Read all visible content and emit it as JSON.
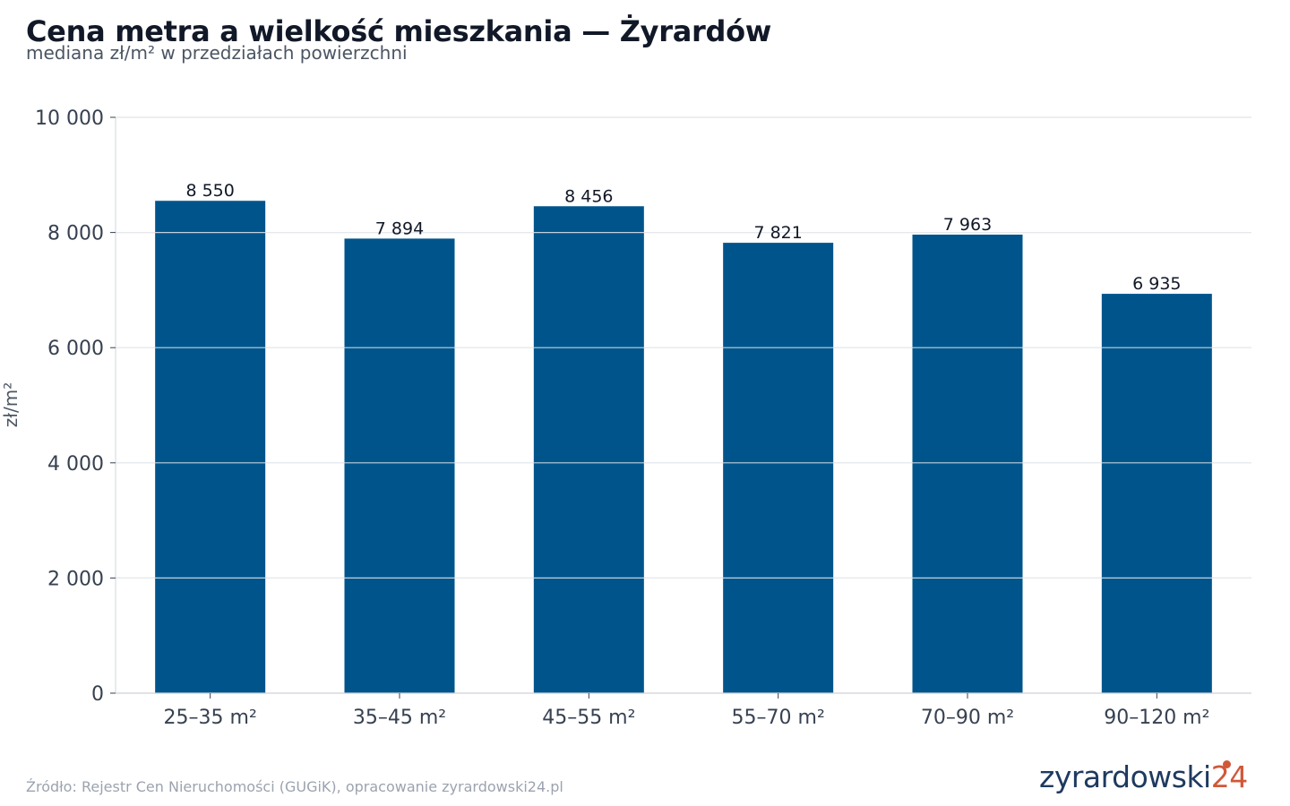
{
  "chart_data": {
    "type": "bar",
    "title": "Cena metra a wielkość mieszkania — Żyrardów",
    "subtitle": "mediana zł/m² w przedziałach powierzchni",
    "ylabel": "zł/m²",
    "xlabel": "",
    "categories": [
      "25–35 m²",
      "35–45 m²",
      "45–55 m²",
      "55–70 m²",
      "70–90 m²",
      "90–120 m²"
    ],
    "values": [
      8550,
      7894,
      8456,
      7821,
      7963,
      6935
    ],
    "value_labels": [
      "8 550",
      "7 894",
      "8 456",
      "7 821",
      "7 963",
      "6 935"
    ],
    "ylim": [
      0,
      10000
    ],
    "yticks": [
      0,
      2000,
      4000,
      6000,
      8000,
      10000
    ],
    "ytick_labels": [
      "0",
      "2 000",
      "4 000",
      "6 000",
      "8 000",
      "10 000"
    ],
    "grid": true,
    "bar_color": "#00548c",
    "grid_color": "#e5e7eb"
  },
  "footer": {
    "source": "Źródło: Rejestr Cen Nieruchomości (GUGiK), opracowanie zyrardowski24.pl",
    "logo_main": "zyrardowski",
    "logo_num": "24"
  }
}
